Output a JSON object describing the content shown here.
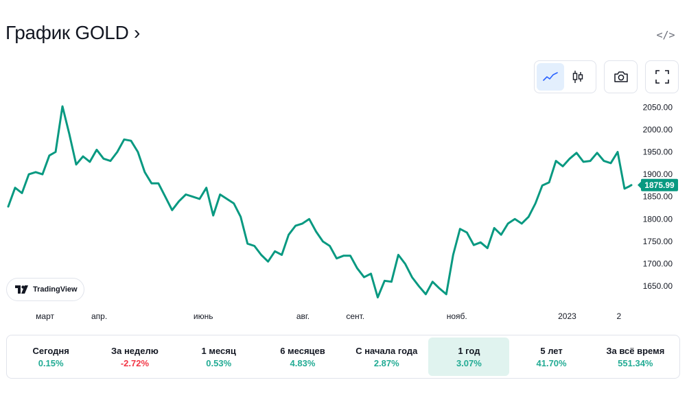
{
  "header": {
    "title": "График GOLD ›",
    "embed_icon": "code-icon"
  },
  "toolbar": {
    "line_icon": "line-chart-icon",
    "candles_icon": "candlestick-icon",
    "snapshot_icon": "camera-icon",
    "fullscreen_icon": "fullscreen-icon"
  },
  "branding": {
    "logo_text": "TradingView"
  },
  "periods": [
    {
      "label": "Сегодня",
      "value": "0.15%",
      "sign": "pos"
    },
    {
      "label": "За неделю",
      "value": "-2.72%",
      "sign": "neg"
    },
    {
      "label": "1 месяц",
      "value": "0.53%",
      "sign": "pos"
    },
    {
      "label": "6 месяцев",
      "value": "4.83%",
      "sign": "pos"
    },
    {
      "label": "С начала года",
      "value": "2.87%",
      "sign": "pos"
    },
    {
      "label": "1 год",
      "value": "3.07%",
      "sign": "pos",
      "active": true
    },
    {
      "label": "5 лет",
      "value": "41.70%",
      "sign": "pos"
    },
    {
      "label": "За всё время",
      "value": "551.34%",
      "sign": "pos"
    }
  ],
  "colors": {
    "line": "#089981",
    "label_bg": "#089981",
    "axis_text": "#131722",
    "positive": "#22ab94",
    "negative": "#f23645",
    "active_period_bg": "#e0f3ef"
  },
  "chart_data": {
    "type": "line",
    "title": "",
    "xlabel": "",
    "ylabel": "",
    "ylim": [
      1615,
      2075
    ],
    "xlim": [
      0,
      1
    ],
    "last_value_label": "1875.99",
    "last_value": 1875.99,
    "y_ticks": [
      "1650.00",
      "1700.00",
      "1750.00",
      "1800.00",
      "1850.00",
      "1900.00",
      "1950.00",
      "2000.00",
      "2050.00"
    ],
    "y_tick_values": [
      1650,
      1700,
      1750,
      1800,
      1850,
      1900,
      1950,
      2000,
      2050
    ],
    "x_ticks": [
      {
        "label": "март",
        "t": 0.059
      },
      {
        "label": "апр.",
        "t": 0.146
      },
      {
        "label": "июнь",
        "t": 0.313
      },
      {
        "label": "авг.",
        "t": 0.473
      },
      {
        "label": "сент.",
        "t": 0.557
      },
      {
        "label": "нояб.",
        "t": 0.72
      },
      {
        "label": "2023",
        "t": 0.897
      },
      {
        "label": "2",
        "t": 0.98
      }
    ],
    "x": [
      0.0,
      0.011,
      0.022,
      0.033,
      0.044,
      0.055,
      0.066,
      0.076,
      0.087,
      0.098,
      0.109,
      0.12,
      0.131,
      0.142,
      0.153,
      0.164,
      0.175,
      0.186,
      0.197,
      0.208,
      0.219,
      0.23,
      0.241,
      0.252,
      0.263,
      0.274,
      0.285,
      0.296,
      0.307,
      0.318,
      0.329,
      0.34,
      0.351,
      0.362,
      0.373,
      0.384,
      0.395,
      0.406,
      0.417,
      0.428,
      0.439,
      0.45,
      0.461,
      0.472,
      0.483,
      0.494,
      0.505,
      0.516,
      0.527,
      0.538,
      0.549,
      0.56,
      0.571,
      0.582,
      0.593,
      0.604,
      0.615,
      0.626,
      0.637,
      0.648,
      0.659,
      0.67,
      0.681,
      0.692,
      0.703,
      0.714,
      0.725,
      0.736,
      0.747,
      0.758,
      0.769,
      0.78,
      0.791,
      0.802,
      0.813,
      0.824,
      0.835,
      0.846,
      0.857,
      0.868,
      0.879,
      0.89,
      0.901,
      0.912,
      0.923,
      0.934,
      0.945,
      0.956,
      0.967,
      0.978,
      0.989,
      0.995,
      1.0
    ],
    "values": [
      1828,
      1870,
      1858,
      1900,
      1905,
      1900,
      1942,
      1950,
      2052,
      1990,
      1922,
      1940,
      1928,
      1955,
      1935,
      1930,
      1950,
      1978,
      1975,
      1950,
      1905,
      1880,
      1880,
      1850,
      1820,
      1840,
      1855,
      1850,
      1845,
      1870,
      1808,
      1855,
      1845,
      1835,
      1805,
      1745,
      1740,
      1720,
      1705,
      1728,
      1720,
      1765,
      1785,
      1790,
      1800,
      1772,
      1750,
      1740,
      1712,
      1718,
      1718,
      1690,
      1670,
      1678,
      1625,
      1662,
      1660,
      1720,
      1700,
      1670,
      1650,
      1632,
      1660,
      1645,
      1632,
      1720,
      1778,
      1770,
      1742,
      1748,
      1735,
      1780,
      1765,
      1790,
      1800,
      1790,
      1805,
      1835,
      1875,
      1882,
      1930,
      1918,
      1935,
      1948,
      1928,
      1930,
      1948,
      1930,
      1925,
      1950,
      1868,
      1872,
      1876
    ]
  }
}
